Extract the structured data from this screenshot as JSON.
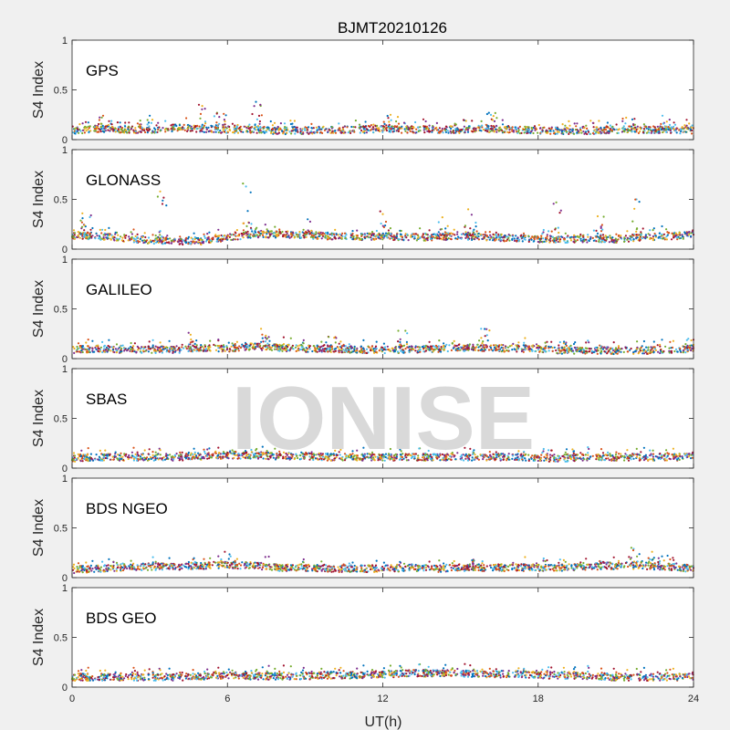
{
  "figure_title": "BJMT20210126",
  "watermark": "IONISE",
  "chart_data": {
    "type": "scatter",
    "title": "BJMT20210126",
    "xlabel": "UT(h)",
    "ylabel": "S4 Index",
    "xlim": [
      0,
      24
    ],
    "ylim": [
      0,
      1
    ],
    "x_ticks": [
      "0",
      "6",
      "12",
      "18",
      "24"
    ],
    "y_ticks": [
      "0",
      "0.5",
      "1"
    ],
    "colors": [
      "#0072BD",
      "#D95319",
      "#EDB120",
      "#7E2F8E",
      "#77AC30",
      "#4DBEEE",
      "#A2142F"
    ],
    "panels": [
      {
        "label": "GPS",
        "baseline_s4": [
          0.09,
          0.11,
          0.1,
          0.1,
          0.12,
          0.11,
          0.1,
          0.1,
          0.09,
          0.09,
          0.1,
          0.1,
          0.11,
          0.1,
          0.1,
          0.1,
          0.11,
          0.1,
          0.09,
          0.09,
          0.09,
          0.1,
          0.1,
          0.1,
          0.09
        ],
        "peaks": [
          [
            4.9,
            0.35
          ],
          [
            7.1,
            0.38
          ],
          [
            5.6,
            0.27
          ],
          [
            12.3,
            0.25
          ],
          [
            16.1,
            0.27
          ],
          [
            22.8,
            0.24
          ],
          [
            1.2,
            0.24
          ],
          [
            3.0,
            0.24
          ],
          [
            21.4,
            0.22
          ]
        ]
      },
      {
        "label": "GLONASS",
        "baseline_s4": [
          0.14,
          0.13,
          0.11,
          0.09,
          0.08,
          0.08,
          0.12,
          0.15,
          0.15,
          0.14,
          0.13,
          0.12,
          0.13,
          0.12,
          0.12,
          0.13,
          0.12,
          0.11,
          0.1,
          0.1,
          0.1,
          0.1,
          0.12,
          0.13,
          0.14
        ],
        "peaks": [
          [
            6.6,
            0.66
          ],
          [
            3.4,
            0.58
          ],
          [
            18.7,
            0.47
          ],
          [
            21.8,
            0.5
          ],
          [
            11.9,
            0.38
          ],
          [
            14.3,
            0.32
          ],
          [
            15.3,
            0.4
          ],
          [
            0.4,
            0.36
          ],
          [
            9.1,
            0.3
          ],
          [
            20.3,
            0.33
          ]
        ]
      },
      {
        "label": "GALILEO",
        "baseline_s4": [
          0.09,
          0.1,
          0.09,
          0.09,
          0.09,
          0.11,
          0.1,
          0.12,
          0.11,
          0.1,
          0.1,
          0.09,
          0.09,
          0.09,
          0.1,
          0.11,
          0.11,
          0.1,
          0.1,
          0.08,
          0.08,
          0.08,
          0.08,
          0.09,
          0.1
        ],
        "peaks": [
          [
            4.5,
            0.26
          ],
          [
            7.3,
            0.3
          ],
          [
            12.6,
            0.28
          ],
          [
            15.8,
            0.3
          ],
          [
            9.9,
            0.22
          ],
          [
            23.8,
            0.2
          ],
          [
            19.0,
            0.17
          ]
        ]
      },
      {
        "label": "SBAS",
        "baseline_s4": [
          0.1,
          0.11,
          0.11,
          0.11,
          0.11,
          0.12,
          0.13,
          0.13,
          0.12,
          0.12,
          0.11,
          0.11,
          0.11,
          0.11,
          0.11,
          0.11,
          0.11,
          0.11,
          0.1,
          0.1,
          0.11,
          0.11,
          0.11,
          0.11,
          0.11
        ],
        "peaks": [
          [
            19.1,
            0.19
          ],
          [
            6.1,
            0.17
          ]
        ]
      },
      {
        "label": "BDS NGEO",
        "baseline_s4": [
          0.08,
          0.09,
          0.1,
          0.11,
          0.11,
          0.12,
          0.13,
          0.12,
          0.1,
          0.1,
          0.09,
          0.09,
          0.09,
          0.1,
          0.09,
          0.1,
          0.1,
          0.1,
          0.1,
          0.1,
          0.11,
          0.12,
          0.12,
          0.11,
          0.09
        ],
        "peaks": [
          [
            5.9,
            0.26
          ],
          [
            21.6,
            0.3
          ],
          [
            22.4,
            0.26
          ],
          [
            15.5,
            0.18
          ],
          [
            23.0,
            0.22
          ],
          [
            1.6,
            0.16
          ]
        ]
      },
      {
        "label": "BDS GEO",
        "baseline_s4": [
          0.1,
          0.1,
          0.1,
          0.1,
          0.1,
          0.11,
          0.12,
          0.11,
          0.11,
          0.11,
          0.12,
          0.12,
          0.13,
          0.14,
          0.14,
          0.14,
          0.13,
          0.13,
          0.12,
          0.12,
          0.11,
          0.1,
          0.1,
          0.1,
          0.1
        ],
        "peaks": [
          [
            14.1,
            0.16
          ],
          [
            6.3,
            0.14
          ]
        ]
      }
    ]
  }
}
